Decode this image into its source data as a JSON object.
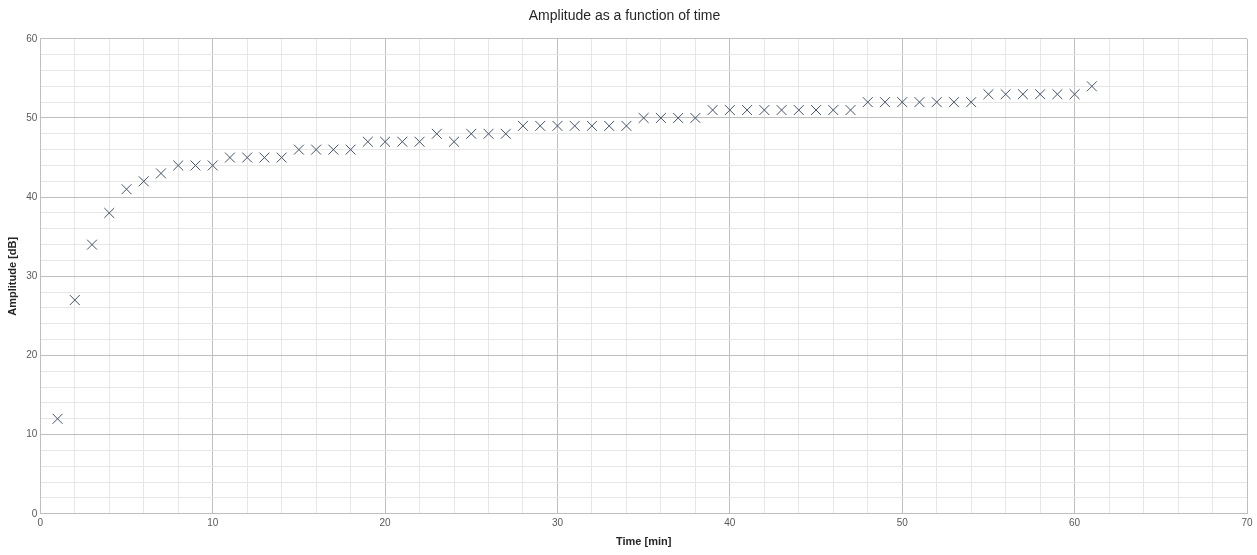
{
  "chart_data": {
    "type": "scatter",
    "title": "Amplitude as a function of time",
    "xlabel": "Time [min]",
    "ylabel": "Amplitude [dB]",
    "x": [
      1,
      2,
      3,
      4,
      5,
      6,
      7,
      8,
      9,
      10,
      11,
      12,
      13,
      14,
      15,
      16,
      17,
      18,
      19,
      20,
      21,
      22,
      23,
      24,
      25,
      26,
      27,
      28,
      29,
      30,
      31,
      32,
      33,
      34,
      35,
      36,
      37,
      38,
      39,
      40,
      41,
      42,
      43,
      44,
      45,
      46,
      47,
      48,
      49,
      50,
      51,
      52,
      53,
      54,
      55,
      56,
      57,
      58,
      59,
      60,
      61
    ],
    "values": [
      12,
      27,
      34,
      38,
      41,
      42,
      43,
      44,
      44,
      44,
      45,
      45,
      45,
      45,
      46,
      46,
      46,
      46,
      47,
      47,
      47,
      47,
      48,
      47,
      48,
      48,
      48,
      49,
      49,
      49,
      49,
      49,
      49,
      49,
      50,
      50,
      50,
      50,
      51,
      51,
      51,
      51,
      51,
      51,
      51,
      51,
      51,
      52,
      52,
      52,
      52,
      52,
      52,
      52,
      53,
      53,
      53,
      53,
      53,
      53,
      54
    ],
    "color": "#44546a",
    "marker": "cross",
    "grid": true,
    "legend": false,
    "xlim": [
      0,
      70
    ],
    "ylim": [
      0,
      60
    ],
    "xticks": [
      0,
      {
        "value": 2,
        "label": null
      },
      {
        "value": 4,
        "label": null
      },
      {
        "value": 6,
        "label": null
      },
      {
        "value": 8,
        "label": null
      },
      10,
      {
        "value": 12,
        "label": null
      },
      {
        "value": 14,
        "label": null
      },
      {
        "value": 16,
        "label": null
      },
      {
        "value": 18,
        "label": null
      },
      20,
      {
        "value": 22,
        "label": null
      },
      {
        "value": 24,
        "label": null
      },
      {
        "value": 26,
        "label": null
      },
      {
        "value": 28,
        "label": null
      },
      30,
      {
        "value": 32,
        "label": null
      },
      {
        "value": 34,
        "label": null
      },
      {
        "value": 36,
        "label": null
      },
      {
        "value": 38,
        "label": null
      },
      40,
      {
        "value": 42,
        "label": null
      },
      {
        "value": 44,
        "label": null
      },
      {
        "value": 46,
        "label": null
      },
      {
        "value": 48,
        "label": null
      },
      50,
      {
        "value": 52,
        "label": null
      },
      {
        "value": 54,
        "label": null
      },
      {
        "value": 56,
        "label": null
      },
      {
        "value": 58,
        "label": null
      },
      60,
      {
        "value": 62,
        "label": null
      },
      {
        "value": 64,
        "label": null
      },
      {
        "value": 66,
        "label": null
      },
      {
        "value": 68,
        "label": null
      },
      70
    ],
    "yticks": [
      0,
      {
        "value": 2,
        "label": null
      },
      {
        "value": 4,
        "label": null
      },
      {
        "value": 6,
        "label": null
      },
      {
        "value": 8,
        "label": null
      },
      10,
      {
        "value": 12,
        "label": null
      },
      {
        "value": 14,
        "label": null
      },
      {
        "value": 16,
        "label": null
      },
      {
        "value": 18,
        "label": null
      },
      20,
      {
        "value": 22,
        "label": null
      },
      {
        "value": 24,
        "label": null
      },
      {
        "value": 26,
        "label": null
      },
      {
        "value": 28,
        "label": null
      },
      30,
      {
        "value": 32,
        "label": null
      },
      {
        "value": 34,
        "label": null
      },
      {
        "value": 36,
        "label": null
      },
      {
        "value": 38,
        "label": null
      },
      40,
      {
        "value": 42,
        "label": null
      },
      {
        "value": 44,
        "label": null
      },
      {
        "value": 46,
        "label": null
      },
      {
        "value": 48,
        "label": null
      },
      50,
      {
        "value": 52,
        "label": null
      },
      {
        "value": 54,
        "label": null
      },
      {
        "value": 56,
        "label": null
      },
      {
        "value": 58,
        "label": null
      },
      60
    ]
  }
}
